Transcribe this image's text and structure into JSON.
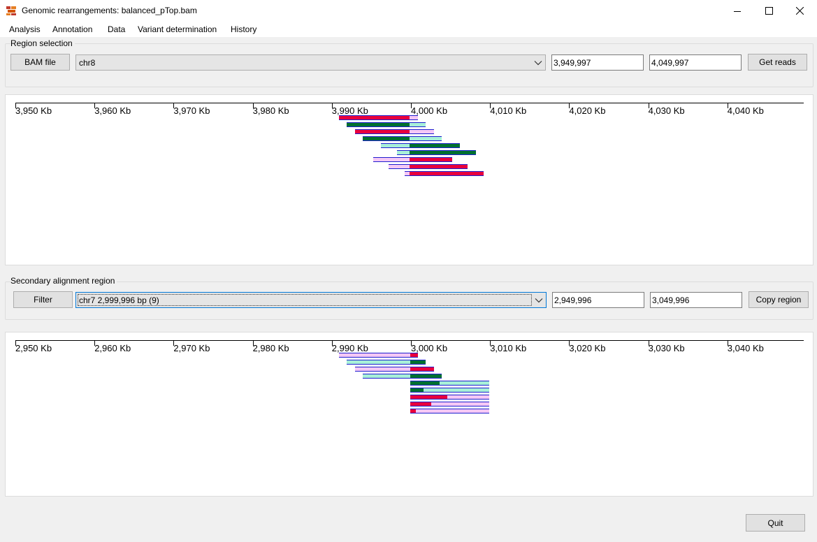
{
  "window": {
    "title": "Genomic rearrangements: balanced_pTop.bam",
    "minimize_icon": "minimize-icon",
    "maximize_icon": "maximize-icon",
    "close_icon": "close-icon"
  },
  "menu": [
    "Analysis",
    "Annotation",
    "Data",
    "Variant determination",
    "History"
  ],
  "region_selection": {
    "label": "Region selection",
    "bam_button": "BAM file",
    "chromosome": "chr8",
    "start": "3,949,997",
    "end": "4,049,997",
    "get_reads_button": "Get reads"
  },
  "secondary_region": {
    "label": "Secondary alignment region",
    "filter_button": "Filter",
    "selection": "chr7 2,999,996 bp (9)",
    "start": "2,949,996",
    "end": "3,049,996",
    "copy_button": "Copy region"
  },
  "primary_track": {
    "ticks": [
      "3,950 Kb",
      "3,960 Kb",
      "3,970 Kb",
      "3,980 Kb",
      "3,990 Kb",
      "4,000 Kb",
      "4,010 Kb",
      "4,020 Kb",
      "4,030 Kb",
      "4,040 Kb"
    ],
    "reads": [
      {
        "start_kb": 3990.9,
        "end_kb": 4000.9,
        "segments": [
          [
            3990.9,
            3999.8,
            "red"
          ],
          [
            3999.8,
            4000.9,
            "pink"
          ]
        ]
      },
      {
        "start_kb": 3991.9,
        "end_kb": 4001.9,
        "segments": [
          [
            3991.9,
            3999.8,
            "green"
          ],
          [
            3999.8,
            4001.9,
            "aqua"
          ]
        ]
      },
      {
        "start_kb": 3992.9,
        "end_kb": 4002.9,
        "segments": [
          [
            3992.9,
            3999.8,
            "red"
          ],
          [
            3999.8,
            4002.9,
            "pink"
          ]
        ]
      },
      {
        "start_kb": 3993.9,
        "end_kb": 4003.9,
        "segments": [
          [
            3993.9,
            3999.8,
            "green"
          ],
          [
            3999.8,
            4003.9,
            "aqua"
          ]
        ]
      },
      {
        "start_kb": 3996.2,
        "end_kb": 4006.2,
        "segments": [
          [
            3996.2,
            3999.8,
            "aqua"
          ],
          [
            3999.8,
            4006.2,
            "green"
          ]
        ]
      },
      {
        "start_kb": 3998.2,
        "end_kb": 4008.2,
        "segments": [
          [
            3998.2,
            3999.8,
            "aqua"
          ],
          [
            3999.8,
            4008.2,
            "green"
          ]
        ]
      },
      {
        "start_kb": 3995.2,
        "end_kb": 4005.2,
        "segments": [
          [
            3995.2,
            3999.8,
            "pink"
          ],
          [
            3999.8,
            4005.2,
            "red"
          ]
        ]
      },
      {
        "start_kb": 3997.2,
        "end_kb": 4007.2,
        "segments": [
          [
            3997.2,
            3999.8,
            "pink"
          ],
          [
            3999.8,
            4007.2,
            "red"
          ]
        ]
      },
      {
        "start_kb": 3999.2,
        "end_kb": 4009.2,
        "segments": [
          [
            3999.2,
            3999.8,
            "pink"
          ],
          [
            3999.8,
            4009.2,
            "red"
          ]
        ]
      }
    ]
  },
  "secondary_track": {
    "ticks": [
      "2,950 Kb",
      "2,960 Kb",
      "2,970 Kb",
      "2,980 Kb",
      "2,990 Kb",
      "3,000 Kb",
      "3,010 Kb",
      "3,020 Kb",
      "3,030 Kb",
      "3,040 Kb"
    ],
    "reads": [
      {
        "start_kb": 2990.9,
        "end_kb": 3000.9,
        "segments": [
          [
            2990.9,
            2999.9,
            "pink"
          ],
          [
            2999.9,
            3000.9,
            "red"
          ]
        ]
      },
      {
        "start_kb": 2991.9,
        "end_kb": 3001.9,
        "segments": [
          [
            2991.9,
            2999.9,
            "aqua"
          ],
          [
            2999.9,
            3001.9,
            "green"
          ]
        ]
      },
      {
        "start_kb": 2992.9,
        "end_kb": 3002.9,
        "segments": [
          [
            2992.9,
            2999.9,
            "pink"
          ],
          [
            2999.9,
            3002.9,
            "red"
          ]
        ]
      },
      {
        "start_kb": 2993.9,
        "end_kb": 3003.9,
        "segments": [
          [
            2993.9,
            2999.9,
            "aqua"
          ],
          [
            2999.9,
            3003.9,
            "green"
          ]
        ]
      },
      {
        "start_kb": 2999.9,
        "end_kb": 3009.9,
        "segments": [
          [
            2999.9,
            3003.6,
            "green"
          ],
          [
            3003.6,
            3009.9,
            "aqua"
          ]
        ]
      },
      {
        "start_kb": 2999.9,
        "end_kb": 3009.9,
        "segments": [
          [
            2999.9,
            3001.6,
            "green"
          ],
          [
            3001.6,
            3009.9,
            "aqua"
          ]
        ]
      },
      {
        "start_kb": 2999.9,
        "end_kb": 3009.9,
        "segments": [
          [
            2999.9,
            3004.6,
            "red"
          ],
          [
            3004.6,
            3009.9,
            "pink"
          ]
        ]
      },
      {
        "start_kb": 2999.9,
        "end_kb": 3009.9,
        "segments": [
          [
            2999.9,
            3002.6,
            "red"
          ],
          [
            3002.6,
            3009.9,
            "pink"
          ]
        ]
      },
      {
        "start_kb": 2999.9,
        "end_kb": 3009.9,
        "segments": [
          [
            2999.9,
            3000.6,
            "red"
          ],
          [
            3000.6,
            3009.9,
            "pink"
          ]
        ]
      }
    ]
  },
  "colors": {
    "red": "#e8003d",
    "pink": "#f5c8f5",
    "green": "#007030",
    "aqua": "#a8f0d8",
    "outline": "#1f1fcf"
  },
  "quit_button": "Quit"
}
